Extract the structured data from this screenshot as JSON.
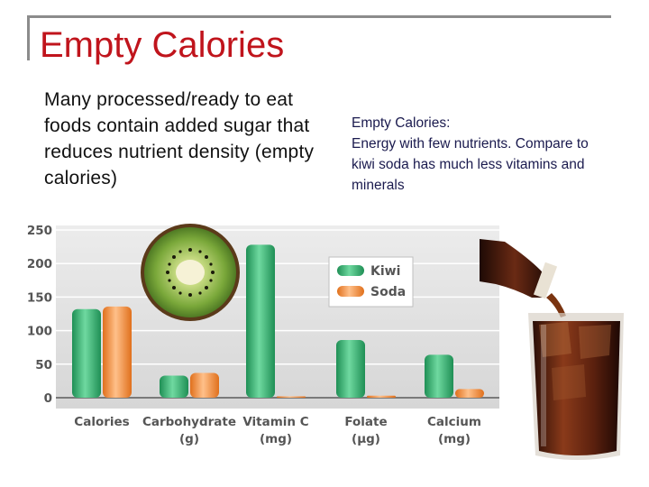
{
  "slide": {
    "title": "Empty Calories",
    "left_text": "Many processed/ready to eat foods contain added sugar that reduces nutrient density (empty calories)",
    "right_heading": "Empty Calories:",
    "right_lines": [
      "Energy with few nutrients. Compare to",
      "kiwi soda has much less vitamins and",
      "minerals"
    ]
  },
  "chart_data": {
    "type": "bar",
    "categories": [
      "Calories",
      "Carbohydrate",
      "Vitamin C",
      "Folate",
      "Calcium"
    ],
    "category_units": [
      "",
      "(g)",
      "(mg)",
      "(µg)",
      "(mg)"
    ],
    "series": [
      {
        "name": "Kiwi",
        "values": [
          132,
          33,
          228,
          86,
          64
        ],
        "color": "#3fb87a"
      },
      {
        "name": "Soda",
        "values": [
          136,
          37,
          2,
          3,
          13
        ],
        "color": "#f7943d"
      }
    ],
    "yticks": [
      0,
      50,
      100,
      150,
      200,
      250
    ],
    "ylim": [
      0,
      250
    ],
    "grid": true,
    "legend_position": "top-right"
  },
  "colors": {
    "title": "#c0141c",
    "kiwi": "#3fb87a",
    "soda": "#f7943d"
  },
  "decor": [
    "kiwi-slice-image",
    "soda-bottle-image",
    "soda-glass-image"
  ]
}
